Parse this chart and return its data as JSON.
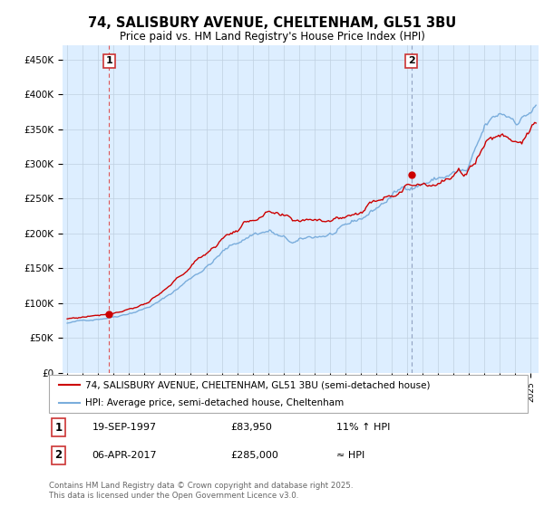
{
  "title": "74, SALISBURY AVENUE, CHELTENHAM, GL51 3BU",
  "subtitle": "Price paid vs. HM Land Registry's House Price Index (HPI)",
  "ylim": [
    0,
    470000
  ],
  "xlim_start": 1994.7,
  "xlim_end": 2025.5,
  "property_color": "#cc0000",
  "hpi_color": "#7aaddc",
  "chart_bg": "#ddeeff",
  "marker1_date": 1997.72,
  "marker2_date": 2017.27,
  "marker1_value": 83950,
  "marker2_value": 285000,
  "yticks": [
    0,
    50000,
    100000,
    150000,
    200000,
    250000,
    300000,
    350000,
    400000,
    450000
  ],
  "ytick_labels": [
    "£0",
    "£50K",
    "£100K",
    "£150K",
    "£200K",
    "£250K",
    "£300K",
    "£350K",
    "£400K",
    "£450K"
  ],
  "legend_label_property": "74, SALISBURY AVENUE, CHELTENHAM, GL51 3BU (semi-detached house)",
  "legend_label_hpi": "HPI: Average price, semi-detached house, Cheltenham",
  "table_row1": [
    "1",
    "19-SEP-1997",
    "£83,950",
    "11% ↑ HPI"
  ],
  "table_row2": [
    "2",
    "06-APR-2017",
    "£285,000",
    "≈ HPI"
  ],
  "footer": "Contains HM Land Registry data © Crown copyright and database right 2025.\nThis data is licensed under the Open Government Licence v3.0.",
  "background_color": "#ffffff",
  "grid_color": "#c0d0e0"
}
